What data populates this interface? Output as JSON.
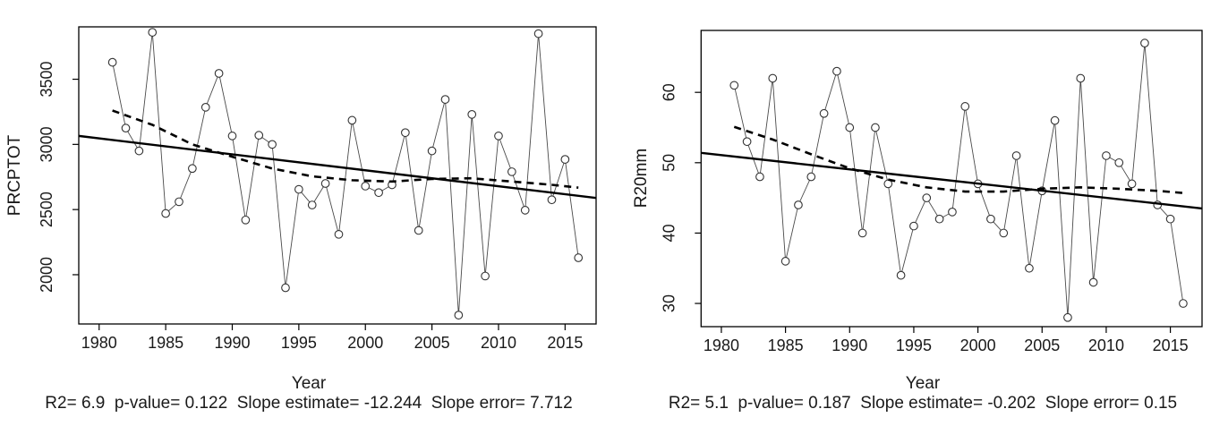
{
  "page": {
    "background": "#ffffff"
  },
  "chart_data": [
    {
      "type": "line",
      "title": "",
      "xlabel": "Year",
      "ylabel": "PRCPTOT",
      "caption": "R2= 6.9  p-value= 0.122  Slope estimate= -12.244  Slope error= 7.712",
      "stats": {
        "r2": 6.9,
        "p_value": 0.122,
        "slope_estimate": -12.244,
        "slope_error": 7.712
      },
      "x": [
        1981,
        1982,
        1983,
        1984,
        1985,
        1986,
        1987,
        1988,
        1989,
        1990,
        1991,
        1992,
        1993,
        1994,
        1995,
        1996,
        1997,
        1998,
        1999,
        2000,
        2001,
        2002,
        2003,
        2004,
        2005,
        2006,
        2007,
        2008,
        2009,
        2010,
        2011,
        2012,
        2013,
        2014,
        2015,
        2016
      ],
      "values": [
        3630,
        3125,
        2950,
        3860,
        2470,
        2560,
        2815,
        3285,
        3545,
        3065,
        2420,
        3070,
        3000,
        1900,
        2655,
        2535,
        2700,
        2310,
        3185,
        2680,
        2630,
        2690,
        3090,
        2340,
        2950,
        3345,
        1690,
        3230,
        1990,
        3065,
        2790,
        2495,
        3850,
        2575,
        2885,
        2130
      ],
      "xticks": [
        1980,
        1985,
        1990,
        1995,
        2000,
        2005,
        2010,
        2015
      ],
      "yticks": [
        2000,
        2500,
        3000,
        3500
      ],
      "xlim": [
        1978.47,
        2017.33
      ],
      "ylim": [
        1622,
        3902
      ],
      "trend_line": {
        "label": "linear-trend",
        "x": [
          1978.47,
          2017.33
        ],
        "y": [
          3065,
          2589
        ]
      },
      "smooth_line": {
        "label": "lowess-smooth",
        "x": [
          1981,
          1984,
          1987,
          1990,
          1993,
          1996,
          1999,
          2002,
          2005,
          2008,
          2011,
          2014,
          2016
        ],
        "y": [
          3260,
          3150,
          3000,
          2905,
          2815,
          2755,
          2725,
          2715,
          2735,
          2740,
          2715,
          2690,
          2668
        ]
      },
      "marker": "open-circle",
      "grid": false,
      "legend": "none",
      "colors": {
        "data_line": "#4a4a4a",
        "trend": "#000000",
        "smooth": "#000000",
        "text": "#1a1a1a",
        "marker_stroke": "#333333"
      }
    },
    {
      "type": "line",
      "title": "",
      "xlabel": "Year",
      "ylabel": "R20mm",
      "caption": "R2= 5.1  p-value= 0.187  Slope estimate= -0.202  Slope error= 0.15",
      "stats": {
        "r2": 5.1,
        "p_value": 0.187,
        "slope_estimate": -0.202,
        "slope_error": 0.15
      },
      "x": [
        1981,
        1982,
        1983,
        1984,
        1985,
        1986,
        1987,
        1988,
        1989,
        1990,
        1991,
        1992,
        1993,
        1994,
        1995,
        1996,
        1997,
        1998,
        1999,
        2000,
        2001,
        2002,
        2003,
        2004,
        2005,
        2006,
        2007,
        2008,
        2009,
        2010,
        2011,
        2012,
        2013,
        2014,
        2015,
        2016
      ],
      "values": [
        61,
        53,
        48,
        62,
        36,
        44,
        48,
        57,
        63,
        55,
        40,
        55,
        47,
        34,
        41,
        45,
        42,
        43,
        58,
        47,
        42,
        40,
        51,
        35,
        46,
        56,
        28,
        62,
        33,
        51,
        50,
        47,
        67,
        44,
        42,
        30
      ],
      "xticks": [
        1980,
        1985,
        1990,
        1995,
        2000,
        2005,
        2010,
        2015
      ],
      "yticks": [
        30,
        40,
        50,
        60
      ],
      "xlim": [
        1978.42,
        2017.47
      ],
      "ylim": [
        26.7,
        68.8
      ],
      "trend_line": {
        "label": "linear-trend",
        "x": [
          1978.42,
          2017.47
        ],
        "y": [
          51.4,
          43.5
        ]
      },
      "smooth_line": {
        "label": "lowess-smooth",
        "x": [
          1981,
          1984,
          1987,
          1990,
          1993,
          1996,
          1999,
          2002,
          2005,
          2008,
          2011,
          2014,
          2016
        ],
        "y": [
          55.1,
          53.3,
          51.2,
          49.2,
          47.6,
          46.5,
          45.9,
          45.9,
          46.3,
          46.5,
          46.3,
          46.0,
          45.7
        ]
      },
      "marker": "open-circle",
      "grid": false,
      "legend": "none",
      "colors": {
        "data_line": "#4a4a4a",
        "trend": "#000000",
        "smooth": "#000000",
        "text": "#1a1a1a",
        "marker_stroke": "#333333"
      }
    }
  ]
}
